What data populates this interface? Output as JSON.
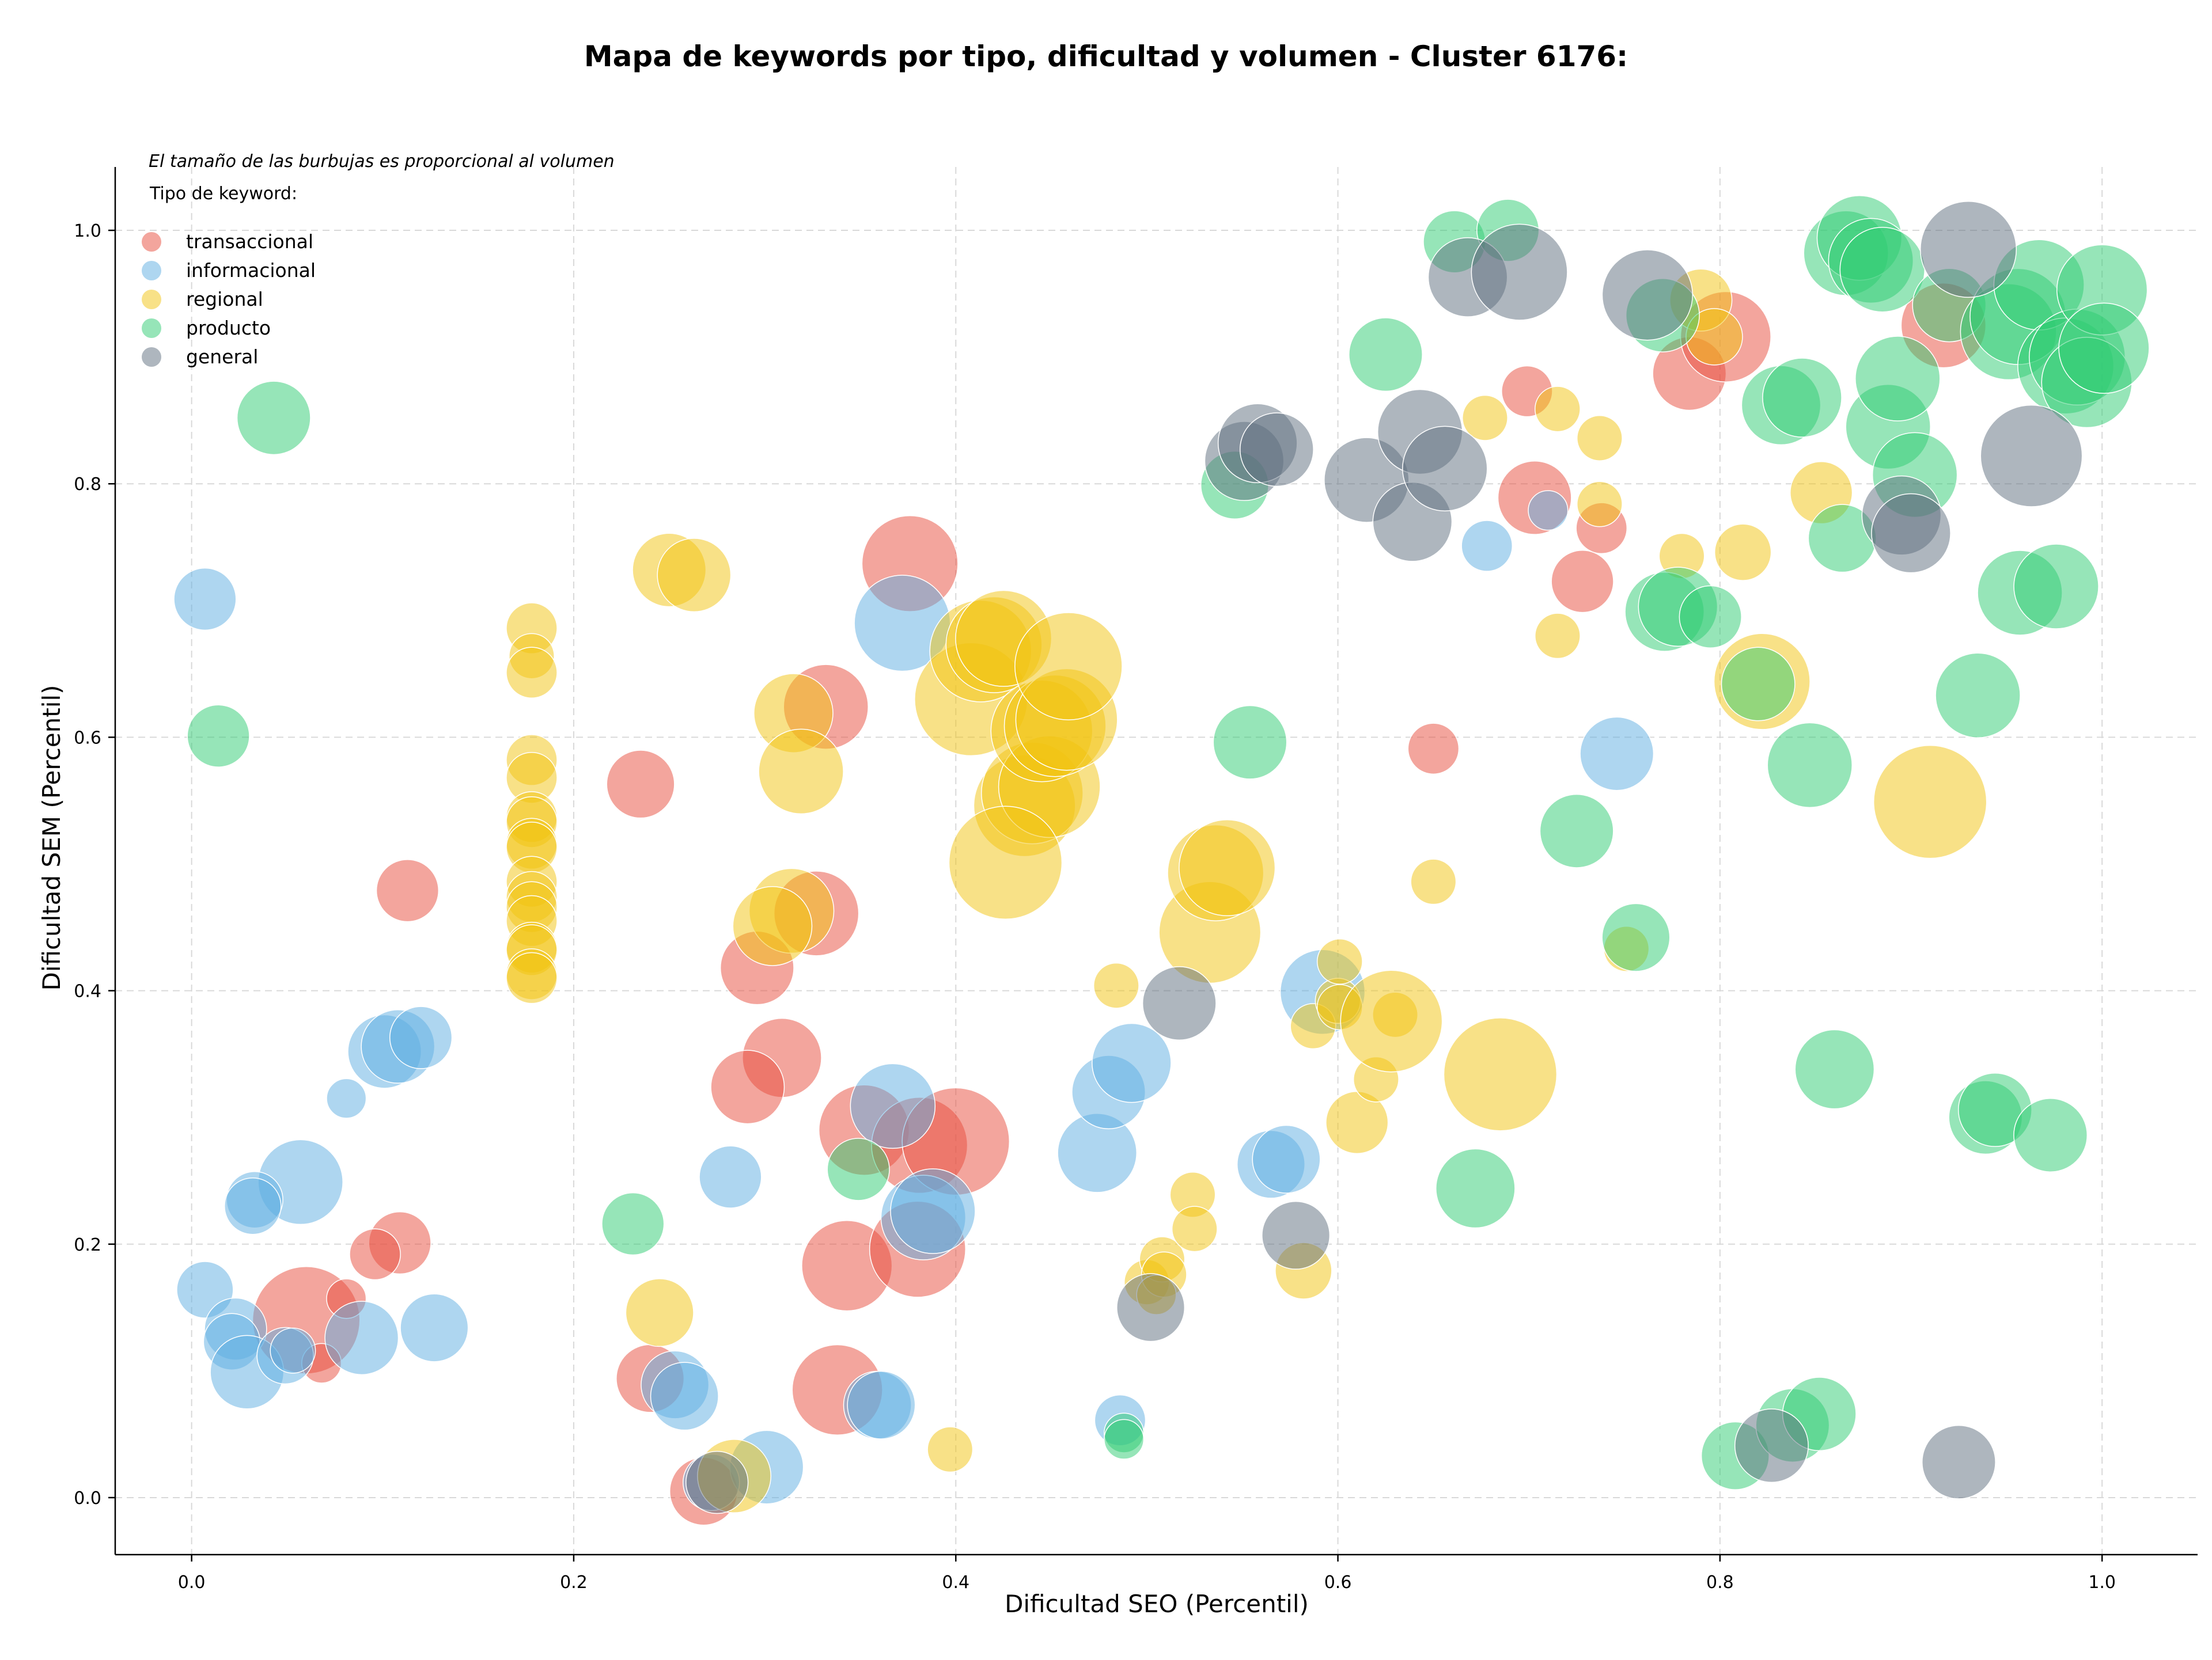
{
  "chart_data": {
    "type": "scatter",
    "title": "Mapa de keywords por tipo, dificultad y volumen - Cluster 6176:",
    "xlabel": "Dificultad SEO (Percentil)",
    "ylabel": "Dificultad SEM (Percentil)",
    "xlim": [
      -0.04,
      1.05
    ],
    "ylim": [
      -0.045,
      1.05
    ],
    "xticks": [
      "0.0",
      "0.2",
      "0.4",
      "0.6",
      "0.8",
      "1.0"
    ],
    "yticks": [
      "0.0",
      "0.2",
      "0.4",
      "0.6",
      "0.8",
      "1.0"
    ],
    "grid": true,
    "size_note": "El tamaño de las burbujas es proporcional al volumen",
    "legend": {
      "title": "Tipo de keyword:",
      "placement": "top-left"
    },
    "series": [
      {
        "name": "transaccional",
        "color": "#e74c3c",
        "points": [
          [
            0.113,
            0.479,
            22
          ],
          [
            0.235,
            0.563,
            24
          ],
          [
            0.332,
            0.624,
            30
          ],
          [
            0.376,
            0.737,
            34
          ],
          [
            0.327,
            0.461,
            30
          ],
          [
            0.296,
            0.418,
            26
          ],
          [
            0.309,
            0.347,
            28
          ],
          [
            0.291,
            0.324,
            26
          ],
          [
            0.352,
            0.29,
            32
          ],
          [
            0.381,
            0.278,
            34
          ],
          [
            0.4,
            0.281,
            38
          ],
          [
            0.343,
            0.183,
            32
          ],
          [
            0.38,
            0.196,
            34
          ],
          [
            0.338,
            0.085,
            32
          ],
          [
            0.24,
            0.094,
            24
          ],
          [
            0.268,
            0.005,
            24
          ],
          [
            0.109,
            0.201,
            22
          ],
          [
            0.096,
            0.192,
            18
          ],
          [
            0.06,
            0.14,
            38
          ],
          [
            0.081,
            0.157,
            14
          ],
          [
            0.068,
            0.106,
            14
          ],
          [
            0.65,
            0.591,
            18
          ],
          [
            0.703,
            0.789,
            26
          ],
          [
            0.699,
            0.873,
            18
          ],
          [
            0.728,
            0.723,
            22
          ],
          [
            0.738,
            0.765,
            18
          ],
          [
            0.784,
            0.887,
            26
          ],
          [
            0.803,
            0.916,
            32
          ],
          [
            0.917,
            0.925,
            30
          ]
        ]
      },
      {
        "name": "informacional",
        "color": "#5dade2",
        "points": [
          [
            0.007,
            0.709,
            22
          ],
          [
            0.101,
            0.352,
            26
          ],
          [
            0.108,
            0.356,
            26
          ],
          [
            0.12,
            0.363,
            22
          ],
          [
            0.081,
            0.315,
            14
          ],
          [
            0.057,
            0.249,
            30
          ],
          [
            0.033,
            0.235,
            20
          ],
          [
            0.032,
            0.23,
            20
          ],
          [
            0.007,
            0.164,
            20
          ],
          [
            0.023,
            0.133,
            22
          ],
          [
            0.021,
            0.123,
            20
          ],
          [
            0.029,
            0.099,
            26
          ],
          [
            0.049,
            0.112,
            20
          ],
          [
            0.053,
            0.116,
            16
          ],
          [
            0.089,
            0.126,
            26
          ],
          [
            0.127,
            0.134,
            24
          ],
          [
            0.253,
            0.089,
            24
          ],
          [
            0.258,
            0.08,
            24
          ],
          [
            0.282,
            0.253,
            22
          ],
          [
            0.301,
            0.024,
            26
          ],
          [
            0.272,
            0.012,
            20
          ],
          [
            0.367,
            0.309,
            30
          ],
          [
            0.372,
            0.69,
            34
          ],
          [
            0.383,
            0.221,
            30
          ],
          [
            0.388,
            0.226,
            30
          ],
          [
            0.359,
            0.073,
            24
          ],
          [
            0.361,
            0.073,
            24
          ],
          [
            0.474,
            0.272,
            28
          ],
          [
            0.48,
            0.32,
            26
          ],
          [
            0.492,
            0.343,
            28
          ],
          [
            0.486,
            0.061,
            18
          ],
          [
            0.565,
            0.263,
            24
          ],
          [
            0.573,
            0.267,
            24
          ],
          [
            0.592,
            0.399,
            30
          ],
          [
            0.678,
            0.751,
            18
          ],
          [
            0.71,
            0.779,
            14
          ],
          [
            0.746,
            0.587,
            26
          ]
        ]
      },
      {
        "name": "regional",
        "color": "#f1c40f",
        "points": [
          [
            0.178,
            0.686,
            18
          ],
          [
            0.178,
            0.664,
            16
          ],
          [
            0.178,
            0.651,
            18
          ],
          [
            0.178,
            0.582,
            18
          ],
          [
            0.178,
            0.568,
            18
          ],
          [
            0.178,
            0.537,
            18
          ],
          [
            0.178,
            0.533,
            18
          ],
          [
            0.178,
            0.516,
            18
          ],
          [
            0.178,
            0.513,
            18
          ],
          [
            0.178,
            0.486,
            18
          ],
          [
            0.178,
            0.474,
            18
          ],
          [
            0.178,
            0.466,
            18
          ],
          [
            0.178,
            0.455,
            18
          ],
          [
            0.178,
            0.434,
            18
          ],
          [
            0.178,
            0.432,
            18
          ],
          [
            0.178,
            0.413,
            18
          ],
          [
            0.178,
            0.41,
            18
          ],
          [
            0.25,
            0.732,
            26
          ],
          [
            0.263,
            0.728,
            26
          ],
          [
            0.315,
            0.619,
            28
          ],
          [
            0.319,
            0.573,
            30
          ],
          [
            0.314,
            0.463,
            30
          ],
          [
            0.304,
            0.451,
            28
          ],
          [
            0.245,
            0.146,
            24
          ],
          [
            0.284,
            0.017,
            26
          ],
          [
            0.408,
            0.63,
            40
          ],
          [
            0.413,
            0.668,
            36
          ],
          [
            0.42,
            0.673,
            34
          ],
          [
            0.425,
            0.678,
            34
          ],
          [
            0.436,
            0.546,
            36
          ],
          [
            0.44,
            0.556,
            36
          ],
          [
            0.449,
            0.561,
            36
          ],
          [
            0.426,
            0.501,
            40
          ],
          [
            0.445,
            0.605,
            36
          ],
          [
            0.452,
            0.609,
            36
          ],
          [
            0.458,
            0.614,
            36
          ],
          [
            0.459,
            0.656,
            38
          ],
          [
            0.397,
            0.038,
            16
          ],
          [
            0.484,
            0.404,
            16
          ],
          [
            0.5,
            0.17,
            16
          ],
          [
            0.508,
            0.188,
            16
          ],
          [
            0.509,
            0.176,
            16
          ],
          [
            0.524,
            0.239,
            16
          ],
          [
            0.525,
            0.212,
            16
          ],
          [
            0.533,
            0.446,
            36
          ],
          [
            0.536,
            0.493,
            34
          ],
          [
            0.542,
            0.497,
            34
          ],
          [
            0.582,
            0.179,
            20
          ],
          [
            0.587,
            0.372,
            16
          ],
          [
            0.6,
            0.392,
            16
          ],
          [
            0.601,
            0.423,
            16
          ],
          [
            0.601,
            0.387,
            16
          ],
          [
            0.61,
            0.296,
            22
          ],
          [
            0.62,
            0.33,
            16
          ],
          [
            0.63,
            0.381,
            16
          ],
          [
            0.628,
            0.376,
            36
          ],
          [
            0.65,
            0.486,
            16
          ],
          [
            0.677,
            0.852,
            16
          ],
          [
            0.685,
            0.334,
            40
          ],
          [
            0.715,
            0.68,
            16
          ],
          [
            0.715,
            0.859,
            16
          ],
          [
            0.737,
            0.836,
            16
          ],
          [
            0.737,
            0.784,
            16
          ],
          [
            0.751,
            0.433,
            16
          ],
          [
            0.78,
            0.743,
            16
          ],
          [
            0.79,
            0.945,
            22
          ],
          [
            0.797,
            0.916,
            20
          ],
          [
            0.812,
            0.746,
            20
          ],
          [
            0.822,
            0.644,
            34
          ],
          [
            0.853,
            0.793,
            22
          ],
          [
            0.91,
            0.549,
            40
          ],
          [
            0.505,
            0.16,
            14
          ]
        ]
      },
      {
        "name": "producto",
        "color": "#2ecc71",
        "points": [
          [
            0.043,
            0.852,
            26
          ],
          [
            0.014,
            0.601,
            22
          ],
          [
            0.231,
            0.216,
            22
          ],
          [
            0.349,
            0.259,
            22
          ],
          [
            0.488,
            0.051,
            14
          ],
          [
            0.488,
            0.046,
            14
          ],
          [
            0.546,
            0.799,
            24
          ],
          [
            0.554,
            0.596,
            26
          ],
          [
            0.625,
            0.902,
            26
          ],
          [
            0.661,
            0.991,
            22
          ],
          [
            0.689,
            1.0,
            22
          ],
          [
            0.672,
            0.244,
            28
          ],
          [
            0.725,
            0.526,
            26
          ],
          [
            0.756,
            0.442,
            24
          ],
          [
            0.77,
            0.933,
            26
          ],
          [
            0.771,
            0.699,
            28
          ],
          [
            0.778,
            0.703,
            28
          ],
          [
            0.795,
            0.695,
            22
          ],
          [
            0.808,
            0.033,
            24
          ],
          [
            0.82,
            0.642,
            26
          ],
          [
            0.832,
            0.862,
            28
          ],
          [
            0.843,
            0.868,
            28
          ],
          [
            0.838,
            0.057,
            26
          ],
          [
            0.847,
            0.578,
            30
          ],
          [
            0.852,
            0.066,
            26
          ],
          [
            0.864,
            0.757,
            24
          ],
          [
            0.86,
            0.338,
            28
          ],
          [
            0.866,
            0.982,
            30
          ],
          [
            0.873,
            0.994,
            30
          ],
          [
            0.879,
            0.976,
            30
          ],
          [
            0.885,
            0.969,
            30
          ],
          [
            0.888,
            0.845,
            30
          ],
          [
            0.893,
            0.883,
            30
          ],
          [
            0.902,
            0.807,
            30
          ],
          [
            0.92,
            0.941,
            26
          ],
          [
            0.935,
            0.633,
            30
          ],
          [
            0.939,
            0.3,
            26
          ],
          [
            0.944,
            0.306,
            26
          ],
          [
            0.951,
            0.92,
            34
          ],
          [
            0.956,
            0.932,
            34
          ],
          [
            0.957,
            0.714,
            30
          ],
          [
            0.967,
            0.957,
            32
          ],
          [
            0.976,
            0.719,
            30
          ],
          [
            0.973,
            0.286,
            26
          ],
          [
            0.981,
            0.893,
            34
          ],
          [
            0.987,
            0.9,
            34
          ],
          [
            0.992,
            0.88,
            32
          ],
          [
            1.0,
            0.953,
            32
          ],
          [
            1.001,
            0.907,
            32
          ]
        ]
      },
      {
        "name": "general",
        "color": "#5d6d7e",
        "points": [
          [
            0.275,
            0.012,
            22
          ],
          [
            0.502,
            0.15,
            24
          ],
          [
            0.517,
            0.39,
            26
          ],
          [
            0.578,
            0.207,
            24
          ],
          [
            0.551,
            0.818,
            28
          ],
          [
            0.558,
            0.832,
            28
          ],
          [
            0.568,
            0.827,
            26
          ],
          [
            0.615,
            0.803,
            30
          ],
          [
            0.639,
            0.77,
            28
          ],
          [
            0.643,
            0.841,
            30
          ],
          [
            0.656,
            0.812,
            30
          ],
          [
            0.668,
            0.963,
            28
          ],
          [
            0.695,
            0.967,
            34
          ],
          [
            0.762,
            0.949,
            32
          ],
          [
            0.827,
            0.041,
            26
          ],
          [
            0.895,
            0.775,
            28
          ],
          [
            0.9,
            0.761,
            28
          ],
          [
            0.925,
            0.028,
            26
          ],
          [
            0.93,
            0.985,
            34
          ],
          [
            0.963,
            0.822,
            36
          ]
        ]
      }
    ]
  }
}
